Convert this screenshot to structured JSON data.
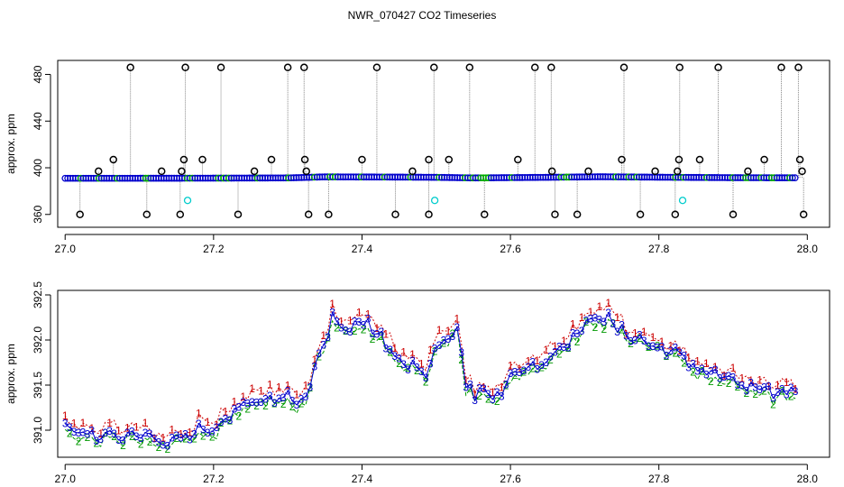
{
  "title": "NWR_070427  CO2 Timeseries",
  "chart_data": [
    {
      "type": "scatter",
      "ylabel": "approx. ppm",
      "xlim": [
        26.99,
        28.03
      ],
      "ylim": [
        349,
        492
      ],
      "xticks": [
        "27.0",
        "27.2",
        "27.4",
        "27.6",
        "27.8",
        "28.0"
      ],
      "yticks": [
        "360",
        "400",
        "440",
        "480"
      ],
      "baseline": [
        {
          "x": 27.0,
          "y": 391.0
        },
        {
          "x": 27.1,
          "y": 391.0
        },
        {
          "x": 27.2,
          "y": 391.1
        },
        {
          "x": 27.3,
          "y": 391.3
        },
        {
          "x": 27.35,
          "y": 392.2
        },
        {
          "x": 27.45,
          "y": 392.0
        },
        {
          "x": 27.5,
          "y": 391.8
        },
        {
          "x": 27.55,
          "y": 391.3
        },
        {
          "x": 27.65,
          "y": 391.8
        },
        {
          "x": 27.72,
          "y": 392.3
        },
        {
          "x": 27.8,
          "y": 391.9
        },
        {
          "x": 27.9,
          "y": 391.5
        },
        {
          "x": 27.98,
          "y": 391.4
        }
      ],
      "outliers": [
        {
          "x": 27.02,
          "y": 360
        },
        {
          "x": 27.045,
          "y": 397
        },
        {
          "x": 27.065,
          "y": 407
        },
        {
          "x": 27.088,
          "y": 486
        },
        {
          "x": 27.11,
          "y": 360
        },
        {
          "x": 27.13,
          "y": 397
        },
        {
          "x": 27.155,
          "y": 360
        },
        {
          "x": 27.157,
          "y": 397
        },
        {
          "x": 27.16,
          "y": 407
        },
        {
          "x": 27.162,
          "y": 486
        },
        {
          "x": 27.185,
          "y": 407
        },
        {
          "x": 27.21,
          "y": 486
        },
        {
          "x": 27.233,
          "y": 360
        },
        {
          "x": 27.255,
          "y": 397
        },
        {
          "x": 27.278,
          "y": 407
        },
        {
          "x": 27.3,
          "y": 486
        },
        {
          "x": 27.322,
          "y": 486
        },
        {
          "x": 27.323,
          "y": 407
        },
        {
          "x": 27.325,
          "y": 397
        },
        {
          "x": 27.328,
          "y": 360
        },
        {
          "x": 27.355,
          "y": 360
        },
        {
          "x": 27.4,
          "y": 407
        },
        {
          "x": 27.42,
          "y": 486
        },
        {
          "x": 27.445,
          "y": 360
        },
        {
          "x": 27.468,
          "y": 397
        },
        {
          "x": 27.49,
          "y": 407
        },
        {
          "x": 27.49,
          "y": 360
        },
        {
          "x": 27.497,
          "y": 486
        },
        {
          "x": 27.517,
          "y": 407
        },
        {
          "x": 27.545,
          "y": 486
        },
        {
          "x": 27.565,
          "y": 360
        },
        {
          "x": 27.61,
          "y": 407
        },
        {
          "x": 27.633,
          "y": 486
        },
        {
          "x": 27.655,
          "y": 486
        },
        {
          "x": 27.656,
          "y": 397
        },
        {
          "x": 27.66,
          "y": 360
        },
        {
          "x": 27.69,
          "y": 360
        },
        {
          "x": 27.705,
          "y": 397
        },
        {
          "x": 27.75,
          "y": 407
        },
        {
          "x": 27.753,
          "y": 486
        },
        {
          "x": 27.775,
          "y": 360
        },
        {
          "x": 27.795,
          "y": 397
        },
        {
          "x": 27.822,
          "y": 360
        },
        {
          "x": 27.825,
          "y": 397
        },
        {
          "x": 27.827,
          "y": 407
        },
        {
          "x": 27.828,
          "y": 486
        },
        {
          "x": 27.855,
          "y": 407
        },
        {
          "x": 27.88,
          "y": 486
        },
        {
          "x": 27.9,
          "y": 360
        },
        {
          "x": 27.92,
          "y": 397
        },
        {
          "x": 27.942,
          "y": 407
        },
        {
          "x": 27.965,
          "y": 486
        },
        {
          "x": 27.988,
          "y": 486
        },
        {
          "x": 27.99,
          "y": 407
        },
        {
          "x": 27.993,
          "y": 397
        },
        {
          "x": 27.995,
          "y": 360
        }
      ],
      "cyan_points": [
        {
          "x": 27.165,
          "y": 372
        },
        {
          "x": 27.498,
          "y": 372
        },
        {
          "x": 27.832,
          "y": 372
        }
      ],
      "colors": {
        "baseline": "#0000cc",
        "baseline_alt": "#00aa00",
        "outlier": "#000000",
        "cyan": "#00cccc",
        "drop": "#888888"
      }
    },
    {
      "type": "line",
      "ylabel": "approx. ppm",
      "xlim": [
        26.99,
        28.03
      ],
      "ylim": [
        390.7,
        392.55
      ],
      "xticks": [
        "27.0",
        "27.2",
        "27.4",
        "27.6",
        "27.8",
        "28.0"
      ],
      "yticks": [
        "391.0",
        "391.5",
        "392.0",
        "392.5"
      ],
      "series": [
        {
          "label": "1",
          "color": "#cc0000",
          "offset": 0.12
        },
        {
          "label": "2",
          "color": "#009900",
          "offset": -0.07
        },
        {
          "label": "3",
          "color": "#0000cc",
          "offset": 0
        }
      ],
      "anchors": [
        {
          "x": 27.0,
          "y": 391.05
        },
        {
          "x": 27.04,
          "y": 390.92
        },
        {
          "x": 27.09,
          "y": 390.95
        },
        {
          "x": 27.14,
          "y": 390.85
        },
        {
          "x": 27.17,
          "y": 391.0
        },
        {
          "x": 27.21,
          "y": 391.05
        },
        {
          "x": 27.24,
          "y": 391.25
        },
        {
          "x": 27.27,
          "y": 391.35
        },
        {
          "x": 27.3,
          "y": 391.35
        },
        {
          "x": 27.32,
          "y": 391.3
        },
        {
          "x": 27.345,
          "y": 391.9
        },
        {
          "x": 27.36,
          "y": 392.25
        },
        {
          "x": 27.38,
          "y": 392.05
        },
        {
          "x": 27.4,
          "y": 392.25
        },
        {
          "x": 27.42,
          "y": 392.1
        },
        {
          "x": 27.445,
          "y": 391.8
        },
        {
          "x": 27.465,
          "y": 391.75
        },
        {
          "x": 27.485,
          "y": 391.6
        },
        {
          "x": 27.5,
          "y": 392.0
        },
        {
          "x": 27.515,
          "y": 392.05
        },
        {
          "x": 27.53,
          "y": 392.15
        },
        {
          "x": 27.54,
          "y": 391.45
        },
        {
          "x": 27.56,
          "y": 391.4
        },
        {
          "x": 27.59,
          "y": 391.45
        },
        {
          "x": 27.61,
          "y": 391.65
        },
        {
          "x": 27.64,
          "y": 391.75
        },
        {
          "x": 27.67,
          "y": 391.95
        },
        {
          "x": 27.7,
          "y": 392.15
        },
        {
          "x": 27.72,
          "y": 392.3
        },
        {
          "x": 27.75,
          "y": 392.1
        },
        {
          "x": 27.78,
          "y": 392.0
        },
        {
          "x": 27.82,
          "y": 391.85
        },
        {
          "x": 27.86,
          "y": 391.65
        },
        {
          "x": 27.9,
          "y": 391.55
        },
        {
          "x": 27.94,
          "y": 391.4
        },
        {
          "x": 27.98,
          "y": 391.45
        }
      ]
    }
  ]
}
